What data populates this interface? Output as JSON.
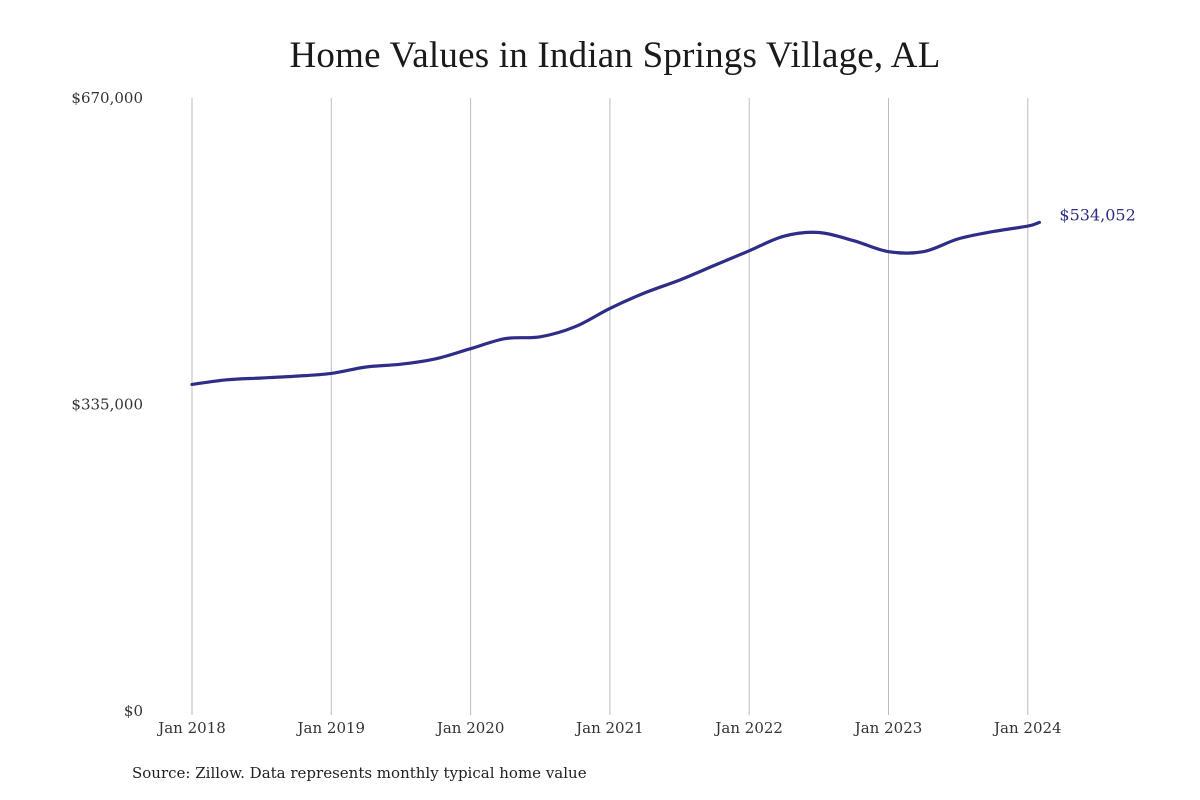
{
  "chart_data": {
    "type": "line",
    "title": "Home Values in Indian Springs Village, AL",
    "xlabel": "",
    "ylabel": "",
    "ylim": [
      0,
      670000
    ],
    "y_ticks": [
      {
        "value": 0,
        "label": "$0"
      },
      {
        "value": 335000,
        "label": "$335,000"
      },
      {
        "value": 670000,
        "label": "$670,000"
      }
    ],
    "x_ticks": [
      "Jan 2018",
      "Jan 2019",
      "Jan 2020",
      "Jan 2021",
      "Jan 2022",
      "Jan 2023",
      "Jan 2024"
    ],
    "grid": "vertical",
    "line_color": "#2e2d87",
    "series": [
      {
        "points": [
          {
            "x": "2018-01",
            "y": 357000
          },
          {
            "x": "2018-04",
            "y": 362000
          },
          {
            "x": "2018-07",
            "y": 364000
          },
          {
            "x": "2018-10",
            "y": 366000
          },
          {
            "x": "2019-01",
            "y": 369000
          },
          {
            "x": "2019-04",
            "y": 376000
          },
          {
            "x": "2019-07",
            "y": 379000
          },
          {
            "x": "2019-10",
            "y": 385000
          },
          {
            "x": "2020-01",
            "y": 396000
          },
          {
            "x": "2020-04",
            "y": 407000
          },
          {
            "x": "2020-07",
            "y": 409000
          },
          {
            "x": "2020-10",
            "y": 420000
          },
          {
            "x": "2021-01",
            "y": 440000
          },
          {
            "x": "2021-04",
            "y": 457000
          },
          {
            "x": "2021-07",
            "y": 471000
          },
          {
            "x": "2021-10",
            "y": 487000
          },
          {
            "x": "2022-01",
            "y": 503000
          },
          {
            "x": "2022-04",
            "y": 519000
          },
          {
            "x": "2022-07",
            "y": 523000
          },
          {
            "x": "2022-10",
            "y": 514000
          },
          {
            "x": "2023-01",
            "y": 502000
          },
          {
            "x": "2023-04",
            "y": 502000
          },
          {
            "x": "2023-07",
            "y": 516000
          },
          {
            "x": "2023-10",
            "y": 524000
          },
          {
            "x": "2024-01",
            "y": 530000
          },
          {
            "x": "2024-02",
            "y": 534052
          }
        ]
      }
    ],
    "end_label": "$534,052",
    "source": "Source: Zillow. Data represents monthly typical home value"
  }
}
